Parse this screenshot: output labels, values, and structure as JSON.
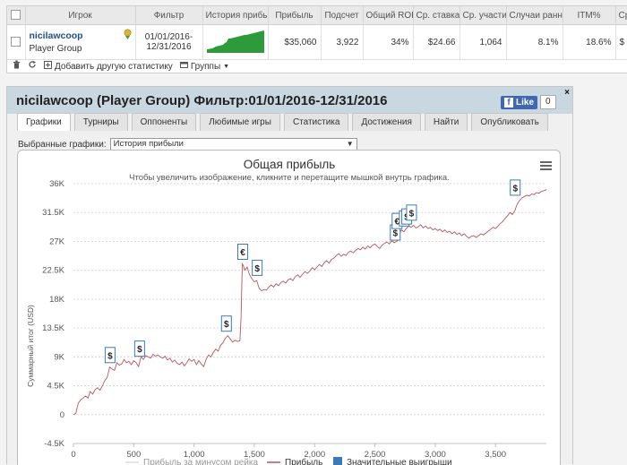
{
  "top": {
    "headers": [
      "Игрок",
      "Фильтр",
      "История прибыли",
      "Прибыль",
      "Подсчет",
      "Общий ROI",
      "Ср. ставка",
      "Ср. участие",
      "Случаи ранней",
      "ITM%",
      "Ср."
    ],
    "row": {
      "player": "nicilawcoop",
      "type": "Player Group",
      "filter_line1": "01/01/2016-",
      "filter_line2": "12/31/2016",
      "profit": "$35,060",
      "count": "3,922",
      "roi": "34%",
      "avg_stake": "$24.66",
      "avg_field": "1,064",
      "early": "8.1%",
      "itm": "18.6%",
      "last": "$"
    },
    "toolbar": {
      "add_stat": "Добавить другую статистику",
      "groups": "Группы"
    }
  },
  "window": {
    "title": "nicilawcoop (Player Group) Фильтр:01/01/2016-12/31/2016",
    "fb_like": "Like",
    "fb_count": "0",
    "close": "×",
    "tabs": [
      "Графики",
      "Турниры",
      "Оппоненты",
      "Любимые игры",
      "Статистика",
      "Достижения",
      "Найти",
      "Опубликовать"
    ],
    "selected_label": "Выбранные графики:",
    "selected_value": "История прибыли"
  },
  "chart_data": {
    "type": "line",
    "title": "Общая прибыль",
    "subtitle": "Чтобы увеличить изображение, кликните и перетащите мышкой внутрь графика.",
    "ylabel": "Суммарный итог (USD)",
    "xlabel": "",
    "xlim": [
      0,
      3922
    ],
    "ylim": [
      -4500,
      36000
    ],
    "x_ticks": [
      0,
      500,
      1000,
      1500,
      2000,
      2500,
      3000,
      3500
    ],
    "x_tick_labels": [
      "0",
      "500",
      "1,000",
      "1,500",
      "2,000",
      "2,500",
      "3,000",
      "3,500"
    ],
    "y_ticks": [
      -4500,
      0,
      4500,
      9000,
      13500,
      18000,
      22500,
      27000,
      31500,
      36000
    ],
    "y_tick_labels": [
      "-4.5K",
      "0",
      "4.5K",
      "9K",
      "13.5K",
      "18K",
      "22.5K",
      "27K",
      "31.5K",
      "36K"
    ],
    "grid": true,
    "legend": [
      "Прибыль за минусом рейка",
      "Прибыль",
      "Значительные выигрыши"
    ],
    "colors": {
      "line": "#b5565f",
      "marker_border": "#3d7ab8",
      "accent": "#3d7ab8"
    },
    "series": [
      {
        "name": "Прибыль",
        "points": [
          [
            0,
            0
          ],
          [
            20,
            200
          ],
          [
            40,
            1800
          ],
          [
            60,
            2300
          ],
          [
            80,
            2600
          ],
          [
            100,
            2900
          ],
          [
            120,
            2600
          ],
          [
            140,
            3600
          ],
          [
            160,
            3200
          ],
          [
            180,
            3900
          ],
          [
            200,
            4200
          ],
          [
            220,
            3800
          ],
          [
            240,
            4500
          ],
          [
            260,
            5300
          ],
          [
            280,
            5800
          ],
          [
            300,
            7400
          ],
          [
            320,
            7100
          ],
          [
            340,
            6900
          ],
          [
            360,
            8100
          ],
          [
            380,
            7700
          ],
          [
            400,
            7900
          ],
          [
            420,
            8600
          ],
          [
            440,
            8100
          ],
          [
            460,
            8300
          ],
          [
            480,
            7800
          ],
          [
            500,
            8400
          ],
          [
            520,
            8100
          ],
          [
            540,
            7500
          ],
          [
            560,
            9000
          ],
          [
            580,
            8600
          ],
          [
            600,
            9200
          ],
          [
            620,
            9000
          ],
          [
            640,
            8800
          ],
          [
            660,
            9400
          ],
          [
            680,
            9100
          ],
          [
            700,
            9300
          ],
          [
            720,
            9000
          ],
          [
            740,
            8800
          ],
          [
            760,
            9100
          ],
          [
            780,
            8500
          ],
          [
            800,
            8800
          ],
          [
            820,
            8200
          ],
          [
            840,
            8500
          ],
          [
            860,
            8000
          ],
          [
            880,
            7800
          ],
          [
            900,
            8200
          ],
          [
            920,
            7600
          ],
          [
            940,
            8100
          ],
          [
            960,
            8700
          ],
          [
            980,
            8300
          ],
          [
            1000,
            8600
          ],
          [
            1020,
            7800
          ],
          [
            1040,
            8400
          ],
          [
            1060,
            7900
          ],
          [
            1080,
            7500
          ],
          [
            1100,
            8600
          ],
          [
            1120,
            9300
          ],
          [
            1140,
            9000
          ],
          [
            1160,
            9700
          ],
          [
            1180,
            10200
          ],
          [
            1200,
            9900
          ],
          [
            1220,
            10800
          ],
          [
            1240,
            11200
          ],
          [
            1260,
            11900
          ],
          [
            1280,
            12300
          ],
          [
            1300,
            11800
          ],
          [
            1320,
            11300
          ],
          [
            1340,
            11600
          ],
          [
            1360,
            11400
          ],
          [
            1380,
            11500
          ],
          [
            1390,
            15000
          ],
          [
            1400,
            23500
          ],
          [
            1410,
            23200
          ],
          [
            1420,
            22500
          ],
          [
            1440,
            23000
          ],
          [
            1460,
            21800
          ],
          [
            1480,
            21200
          ],
          [
            1500,
            20700
          ],
          [
            1520,
            20900
          ],
          [
            1540,
            19700
          ],
          [
            1560,
            19300
          ],
          [
            1580,
            19500
          ],
          [
            1600,
            19400
          ],
          [
            1620,
            19900
          ],
          [
            1640,
            20200
          ],
          [
            1660,
            19900
          ],
          [
            1680,
            20400
          ],
          [
            1700,
            20100
          ],
          [
            1720,
            20600
          ],
          [
            1740,
            20800
          ],
          [
            1760,
            20500
          ],
          [
            1780,
            21000
          ],
          [
            1800,
            21200
          ],
          [
            1820,
            20900
          ],
          [
            1840,
            21500
          ],
          [
            1860,
            21800
          ],
          [
            1880,
            21400
          ],
          [
            1900,
            21900
          ],
          [
            1920,
            22300
          ],
          [
            1940,
            22000
          ],
          [
            1960,
            22400
          ],
          [
            1980,
            22900
          ],
          [
            2000,
            22600
          ],
          [
            2020,
            23000
          ],
          [
            2040,
            23400
          ],
          [
            2060,
            23100
          ],
          [
            2080,
            23700
          ],
          [
            2100,
            24000
          ],
          [
            2120,
            23600
          ],
          [
            2140,
            24200
          ],
          [
            2160,
            24400
          ],
          [
            2180,
            24800
          ],
          [
            2200,
            25100
          ],
          [
            2220,
            24700
          ],
          [
            2240,
            25000
          ],
          [
            2260,
            24800
          ],
          [
            2280,
            25300
          ],
          [
            2300,
            25500
          ],
          [
            2320,
            25200
          ],
          [
            2340,
            25600
          ],
          [
            2360,
            25900
          ],
          [
            2380,
            25700
          ],
          [
            2400,
            26100
          ],
          [
            2420,
            25800
          ],
          [
            2440,
            26300
          ],
          [
            2460,
            26000
          ],
          [
            2480,
            26400
          ],
          [
            2500,
            26600
          ],
          [
            2520,
            26200
          ],
          [
            2540,
            25900
          ],
          [
            2560,
            26400
          ],
          [
            2580,
            26700
          ],
          [
            2600,
            26900
          ],
          [
            2620,
            26600
          ],
          [
            2640,
            27100
          ],
          [
            2660,
            26800
          ],
          [
            2680,
            27000
          ],
          [
            2700,
            27300
          ],
          [
            2710,
            28400
          ],
          [
            2720,
            28800
          ],
          [
            2740,
            28500
          ],
          [
            2760,
            29000
          ],
          [
            2780,
            29400
          ],
          [
            2800,
            29200
          ],
          [
            2820,
            29500
          ],
          [
            2840,
            29100
          ],
          [
            2860,
            29300
          ],
          [
            2880,
            29600
          ],
          [
            2900,
            29100
          ],
          [
            2920,
            29400
          ],
          [
            2940,
            29000
          ],
          [
            2960,
            29200
          ],
          [
            2980,
            28800
          ],
          [
            3000,
            29000
          ],
          [
            3020,
            28700
          ],
          [
            3040,
            28900
          ],
          [
            3060,
            28500
          ],
          [
            3080,
            28800
          ],
          [
            3100,
            28400
          ],
          [
            3120,
            28600
          ],
          [
            3140,
            28200
          ],
          [
            3160,
            28500
          ],
          [
            3180,
            28100
          ],
          [
            3200,
            28300
          ],
          [
            3220,
            27900
          ],
          [
            3240,
            28200
          ],
          [
            3260,
            27800
          ],
          [
            3280,
            27500
          ],
          [
            3300,
            27800
          ],
          [
            3320,
            27900
          ],
          [
            3340,
            27600
          ],
          [
            3360,
            27900
          ],
          [
            3380,
            28200
          ],
          [
            3400,
            28000
          ],
          [
            3420,
            28300
          ],
          [
            3440,
            28600
          ],
          [
            3460,
            28900
          ],
          [
            3480,
            29200
          ],
          [
            3500,
            29000
          ],
          [
            3520,
            29400
          ],
          [
            3540,
            29800
          ],
          [
            3560,
            30100
          ],
          [
            3580,
            30600
          ],
          [
            3600,
            31000
          ],
          [
            3620,
            31500
          ],
          [
            3640,
            31200
          ],
          [
            3660,
            31800
          ],
          [
            3680,
            32800
          ],
          [
            3700,
            33400
          ],
          [
            3720,
            33800
          ],
          [
            3740,
            34000
          ],
          [
            3760,
            34200
          ],
          [
            3780,
            34100
          ],
          [
            3800,
            34400
          ],
          [
            3820,
            34300
          ],
          [
            3840,
            34600
          ],
          [
            3860,
            34500
          ],
          [
            3880,
            34800
          ],
          [
            3900,
            34900
          ],
          [
            3922,
            35060
          ]
        ]
      }
    ],
    "markers": [
      {
        "x": 300,
        "y": 7400,
        "symbol": "$"
      },
      {
        "x": 545,
        "y": 8400,
        "symbol": "$"
      },
      {
        "x": 1265,
        "y": 12300,
        "symbol": "$"
      },
      {
        "x": 1400,
        "y": 23500,
        "symbol": "€"
      },
      {
        "x": 1520,
        "y": 21000,
        "symbol": "$"
      },
      {
        "x": 2665,
        "y": 26500,
        "symbol": "$"
      },
      {
        "x": 2680,
        "y": 28300,
        "symbol": "€"
      },
      {
        "x": 2740,
        "y": 28700,
        "symbol": "€"
      },
      {
        "x": 2760,
        "y": 29000,
        "symbol": "$"
      },
      {
        "x": 2800,
        "y": 29600,
        "symbol": "$"
      },
      {
        "x": 3660,
        "y": 33500,
        "symbol": "$"
      }
    ]
  }
}
